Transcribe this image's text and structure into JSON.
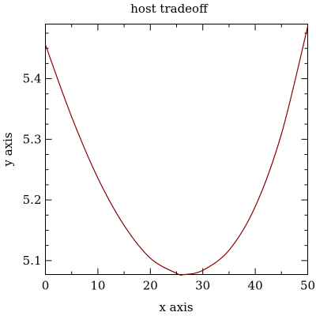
{
  "chart_data": {
    "type": "line",
    "title": "host tradeoff",
    "xlabel": "x axis",
    "ylabel": "y axis",
    "xlim": [
      0,
      50
    ],
    "ylim": [
      5.077,
      5.49
    ],
    "grid": false,
    "legend": "none",
    "x_ticks": [
      0,
      10,
      20,
      30,
      40,
      50
    ],
    "x_tick_labels": [
      "0",
      "10",
      "20",
      "30",
      "40",
      "50"
    ],
    "x_minor_ticks": [
      5,
      15,
      25,
      35,
      45
    ],
    "y_ticks": [
      5.1,
      5.2,
      5.3,
      5.4
    ],
    "y_tick_labels": [
      "5.1",
      "5.2",
      "5.3",
      "5.4"
    ],
    "y_minor_ticks": [
      5.125,
      5.15,
      5.175,
      5.225,
      5.25,
      5.275,
      5.325,
      5.35,
      5.375,
      5.425,
      5.45,
      5.475
    ],
    "series": [
      {
        "color": "#8b0000",
        "x": [
          0,
          5,
          10,
          15,
          20,
          25,
          26.5,
          30,
          35,
          40,
          45,
          50
        ],
        "y": [
          5.456,
          5.337,
          5.236,
          5.158,
          5.104,
          5.079,
          5.077,
          5.084,
          5.117,
          5.189,
          5.309,
          5.486
        ]
      }
    ]
  }
}
